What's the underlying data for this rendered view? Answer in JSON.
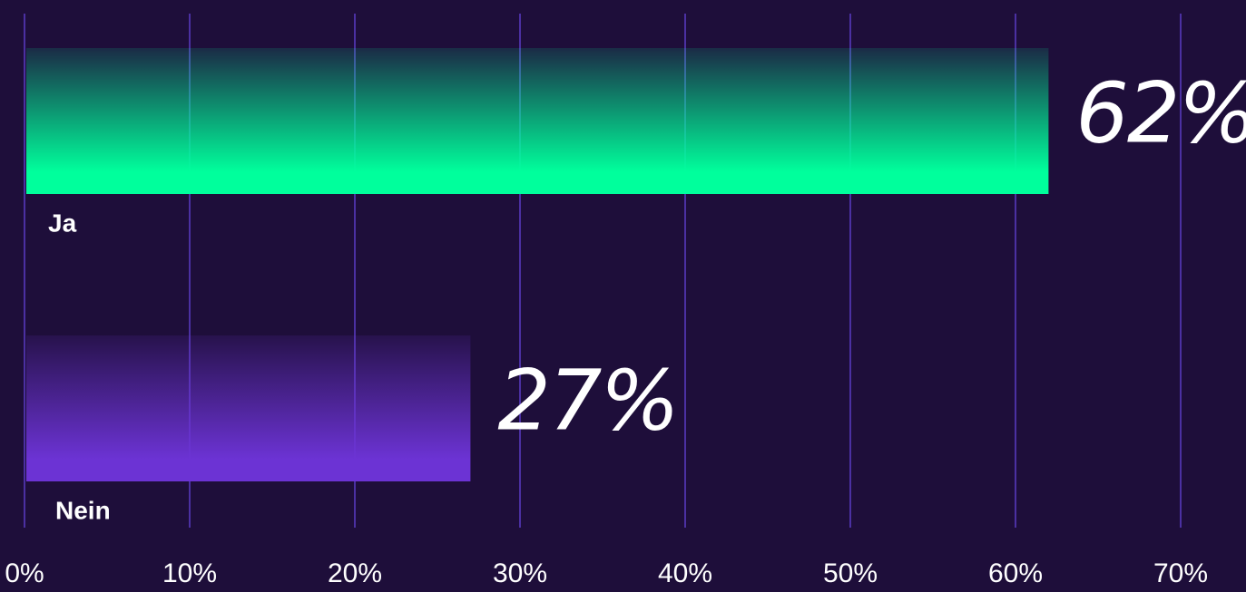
{
  "chart_data": {
    "type": "bar",
    "orientation": "horizontal",
    "categories": [
      "Ja",
      "Nein"
    ],
    "values": [
      62,
      27
    ],
    "value_labels": [
      "62%",
      "27%"
    ],
    "colors": [
      "#00ff9c",
      "#6c33d4"
    ],
    "xlim": [
      0,
      70
    ],
    "xticks": [
      {
        "value": 0,
        "label": "0%"
      },
      {
        "value": 10,
        "label": "10%"
      },
      {
        "value": 20,
        "label": "20%"
      },
      {
        "value": 30,
        "label": "30%"
      },
      {
        "value": 40,
        "label": "40%"
      },
      {
        "value": 50,
        "label": "50%"
      },
      {
        "value": 60,
        "label": "60%"
      },
      {
        "value": 70,
        "label": "70%"
      }
    ],
    "grid": true
  }
}
